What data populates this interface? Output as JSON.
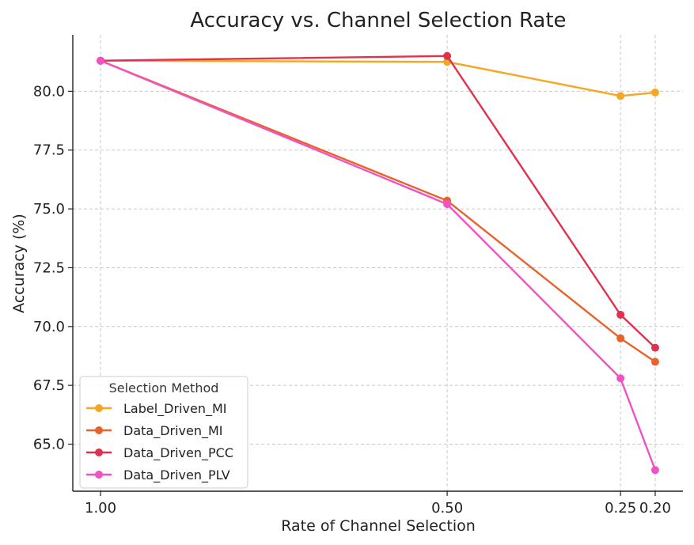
{
  "chart_data": {
    "type": "line",
    "title": "Accuracy vs. Channel Selection Rate",
    "xlabel": "Rate of Channel Selection",
    "ylabel": "Accuracy (%)",
    "x": [
      1.0,
      0.5,
      0.25,
      0.2
    ],
    "x_tick_labels": [
      "1.00",
      "0.50",
      "0.25",
      "0.20"
    ],
    "x_axis_reversed": true,
    "xlim": [
      1.04,
      0.16
    ],
    "ylim": [
      63.0,
      82.4
    ],
    "y_ticks": [
      65.0,
      67.5,
      70.0,
      72.5,
      75.0,
      77.5,
      80.0
    ],
    "y_tick_labels": [
      "65.0",
      "67.5",
      "70.0",
      "72.5",
      "75.0",
      "77.5",
      "80.0"
    ],
    "grid": true,
    "legend": {
      "title": "Selection Method",
      "placement": "lower-left"
    },
    "series": [
      {
        "name": "Label_Driven_MI",
        "color": "#f5a623",
        "values": [
          81.3,
          81.25,
          79.8,
          79.95
        ]
      },
      {
        "name": "Data_Driven_MI",
        "color": "#e8632b",
        "values": [
          81.3,
          75.35,
          69.5,
          68.5
        ]
      },
      {
        "name": "Data_Driven_PCC",
        "color": "#e0314f",
        "values": [
          81.3,
          81.5,
          70.5,
          69.1
        ]
      },
      {
        "name": "Data_Driven_PLV",
        "color": "#f052c4",
        "values": [
          81.3,
          75.2,
          67.8,
          63.9
        ]
      }
    ]
  }
}
